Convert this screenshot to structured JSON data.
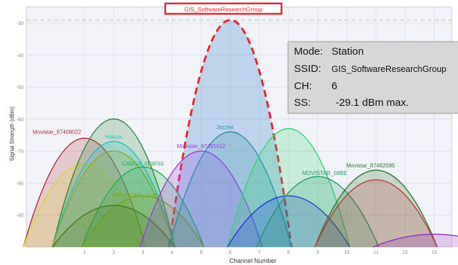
{
  "chart_data": {
    "type": "area",
    "xlabel": "Channel Number",
    "ylabel": "Signal Strength (dBm)",
    "x_ticks": [
      "1",
      "2",
      "3",
      "4",
      "5",
      "6",
      "7",
      "8",
      "9",
      "10",
      "11",
      "12",
      "13"
    ],
    "y_ticks": [
      "-30",
      "-40",
      "-50",
      "-60",
      "-70",
      "-80",
      "-90"
    ],
    "ylim": [
      -100,
      -25
    ],
    "xlim": [
      -1,
      13.6
    ],
    "grid": true,
    "series": [
      {
        "name": "GIS_SoftwareResearchGroup",
        "channel": 6,
        "peak": -29.1,
        "color": "#e8242b",
        "highlight": true
      },
      {
        "name": "Movistar_87408022",
        "channel": 1,
        "peak": -66,
        "color": "#b0303a"
      },
      {
        "name": "",
        "channel": 1,
        "peak": -74,
        "color": "#d8d830"
      },
      {
        "name": "",
        "channel": 2,
        "peak": -60,
        "color": "#2e8a3a"
      },
      {
        "name": "Halcon",
        "channel": 2,
        "peak": -67,
        "color": "#1fc0c0"
      },
      {
        "name": "",
        "channel": 2,
        "peak": -70,
        "color": "#8aaa30"
      },
      {
        "name": "CAMSA_0E8F65",
        "channel": 3,
        "peak": -75,
        "color": "#20b050"
      },
      {
        "name": "MOVISTAR_2D9E",
        "channel": 3,
        "peak": -84,
        "color": "#7aa820"
      },
      {
        "name": "",
        "channel": 2,
        "peak": -87,
        "color": "#4a7a20"
      },
      {
        "name": "Movistar_87491012",
        "channel": 5,
        "peak": -70,
        "color": "#9e3de0"
      },
      {
        "name": "Jazztel",
        "channel": 6,
        "peak": -64,
        "color": "#2a8fa8"
      },
      {
        "name": "",
        "channel": 8,
        "peak": -63,
        "color": "#2ed870"
      },
      {
        "name": "",
        "channel": 8,
        "peak": -84,
        "color": "#1a3ae0"
      },
      {
        "name": "MOVISTAR_08BE",
        "channel": 9,
        "peak": -78,
        "color": "#2a9a70"
      },
      {
        "name": "Movistar_87462095",
        "channel": 11,
        "peak": -76,
        "color": "#2c7a2c"
      },
      {
        "name": "",
        "channel": 11,
        "peak": -79,
        "color": "#c03a3a"
      },
      {
        "name": "",
        "channel": 13,
        "peak": -96,
        "color": "#9a30c0"
      }
    ]
  },
  "selected_network_label": "GIS_SoftwareResearchGroup",
  "info_box": {
    "mode_key": "Mode:",
    "mode_value": "Station",
    "ssid_key": "SSID:",
    "ssid_value": "GIS_SoftwareResearchGroup",
    "ch_key": "CH:",
    "ch_value": "6",
    "ss_key": "SS:",
    "ss_value": "-29.1 dBm max."
  }
}
